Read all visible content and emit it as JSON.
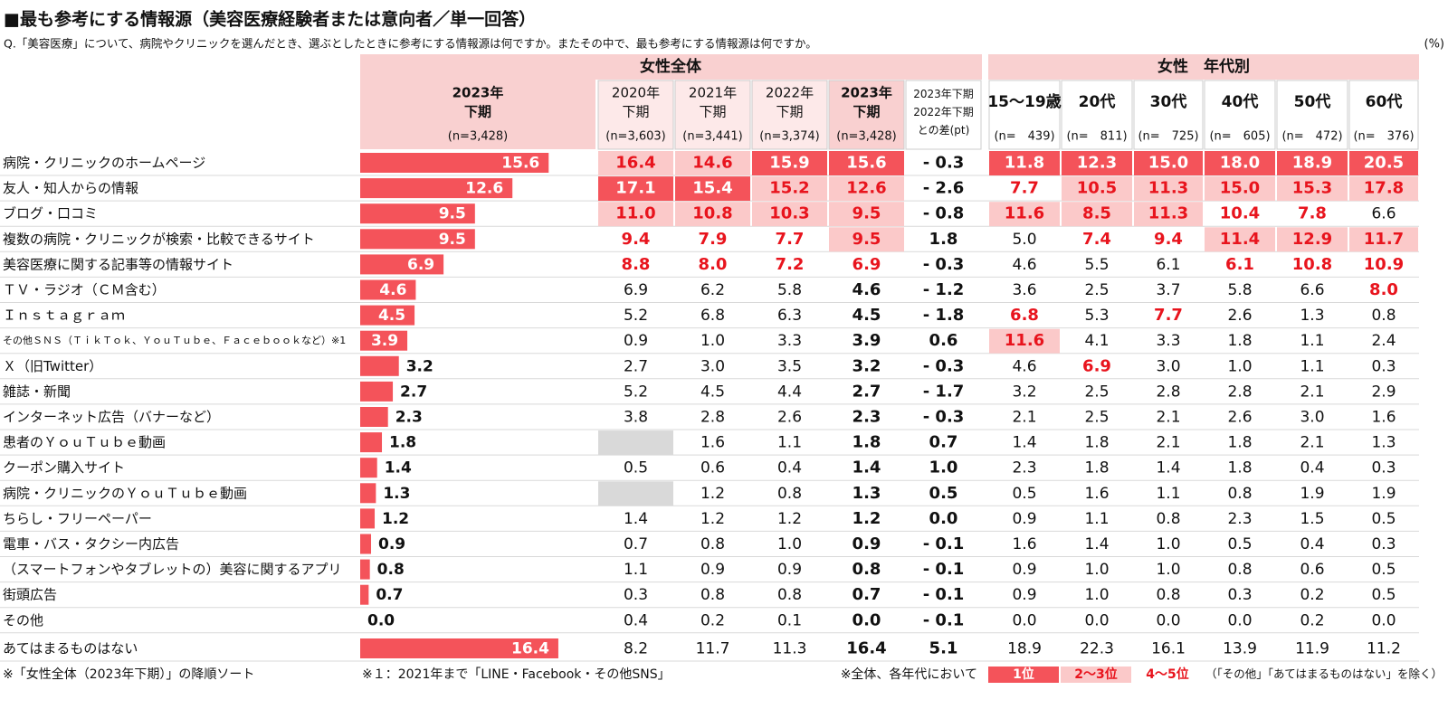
{
  "header": {
    "title": "■最も参考にする情報源（美容医療経験者または意向者／単一回答）",
    "question": "Q.「美容医療」について、病院やクリニックを選んだとき、選ぶとしたときに参考にする情報源は何ですか。またその中で、最も参考にする情報源は何ですか。",
    "unit": "(%)"
  },
  "table": {
    "group_headers": [
      "女性全体",
      "女性　年代別"
    ],
    "bar_header": {
      "label": "2023年\n下期",
      "n": "(n=3,428)"
    },
    "columns": [
      {
        "label": "2020年\n下期",
        "n": "(n=3,603)"
      },
      {
        "label": "2021年\n下期",
        "n": "(n=3,441)"
      },
      {
        "label": "2022年\n下期",
        "n": "(n=3,374)"
      },
      {
        "label": "2023年\n下期",
        "n": "(n=3,428)"
      },
      {
        "label": "2023年下期\n2022年下期\nとの差(pt)",
        "n": null
      },
      {
        "label": "15〜19歳",
        "n": "(n=　439)"
      },
      {
        "label": "20代",
        "n": "(n=　811)"
      },
      {
        "label": "30代",
        "n": "(n=　725)"
      },
      {
        "label": "40代",
        "n": "(n=　605)"
      },
      {
        "label": "50代",
        "n": "(n=　472)"
      },
      {
        "label": "60代",
        "n": "(n=　376)"
      }
    ],
    "bar_color": "#f4535a",
    "bar": {
      "values": [
        15.6,
        12.6,
        9.5,
        9.5,
        6.9,
        4.6,
        4.5,
        3.9,
        3.2,
        2.7,
        2.3,
        1.8,
        1.4,
        1.3,
        1.2,
        0.9,
        0.8,
        0.7,
        0.0,
        16.4
      ],
      "value_labels": [
        "15.6",
        "12.6",
        "9.5",
        "9.5",
        "6.9",
        "4.6",
        "4.5",
        "3.9",
        "3.2",
        "2.7",
        "2.3",
        "1.8",
        "1.4",
        "1.3",
        "1.2",
        "0.9",
        "0.8",
        "0.7",
        "0.0",
        "16.4"
      ]
    },
    "rows": [
      {
        "label": "病院・クリニックのホームページ",
        "cells": [
          "16.4",
          "14.6",
          "15.9",
          "15.6",
          "- 0.3",
          "11.8",
          "12.3",
          "15.0",
          "18.0",
          "18.9",
          "20.5"
        ],
        "highlight": [
          2,
          2,
          1,
          1,
          0,
          1,
          1,
          1,
          1,
          1,
          1
        ]
      },
      {
        "label": "友人・知人からの情報",
        "cells": [
          "17.1",
          "15.4",
          "15.2",
          "12.6",
          "- 2.6",
          "7.7",
          "10.5",
          "11.3",
          "15.0",
          "15.3",
          "17.8"
        ],
        "highlight": [
          1,
          1,
          2,
          2,
          0,
          3,
          2,
          2,
          2,
          2,
          2
        ]
      },
      {
        "label": "ブログ・口コミ",
        "cells": [
          "11.0",
          "10.8",
          "10.3",
          "9.5",
          "- 0.8",
          "11.6",
          "8.5",
          "11.3",
          "10.4",
          "7.8",
          "6.6"
        ],
        "highlight": [
          2,
          2,
          2,
          2,
          0,
          2,
          2,
          2,
          3,
          3,
          0
        ]
      },
      {
        "label": "複数の病院・クリニックが検索・比較できるサイト",
        "cells": [
          "9.4",
          "7.9",
          "7.7",
          "9.5",
          "1.8",
          "5.0",
          "7.4",
          "9.4",
          "11.4",
          "12.9",
          "11.7"
        ],
        "highlight": [
          3,
          3,
          3,
          2,
          0,
          0,
          3,
          3,
          2,
          2,
          2
        ]
      },
      {
        "label": "美容医療に関する記事等の情報サイト",
        "cells": [
          "8.8",
          "8.0",
          "7.2",
          "6.9",
          "- 0.3",
          "4.6",
          "5.5",
          "6.1",
          "6.1",
          "10.8",
          "10.9"
        ],
        "highlight": [
          3,
          3,
          3,
          3,
          0,
          0,
          0,
          0,
          3,
          3,
          3
        ]
      },
      {
        "label": "ＴＶ・ラジオ（ＣＭ含む）",
        "cells": [
          "6.9",
          "6.2",
          "5.8",
          "4.6",
          "- 1.2",
          "3.6",
          "2.5",
          "3.7",
          "5.8",
          "6.6",
          "8.0"
        ],
        "highlight": [
          0,
          0,
          0,
          0,
          0,
          0,
          0,
          0,
          0,
          0,
          3
        ]
      },
      {
        "label": "Ｉｎｓｔａｇｒａｍ",
        "cells": [
          "5.2",
          "6.8",
          "6.3",
          "4.5",
          "- 1.8",
          "6.8",
          "5.3",
          "7.7",
          "2.6",
          "1.3",
          "0.8"
        ],
        "highlight": [
          0,
          0,
          0,
          0,
          0,
          3,
          0,
          3,
          0,
          0,
          0
        ]
      },
      {
        "label": "その他ＳＮＳ（ＴｉｋＴｏｋ、ＹｏｕＴｕｂｅ、Ｆａｃｅｂｏｏｋなど）※1",
        "cells": [
          "0.9",
          "1.0",
          "3.3",
          "3.9",
          "0.6",
          "11.6",
          "4.1",
          "3.3",
          "1.8",
          "1.1",
          "2.4"
        ],
        "highlight": [
          0,
          0,
          0,
          0,
          0,
          2,
          0,
          0,
          0,
          0,
          0
        ]
      },
      {
        "label": "Ｘ（旧Twitter）",
        "cells": [
          "2.7",
          "3.0",
          "3.5",
          "3.2",
          "- 0.3",
          "4.6",
          "6.9",
          "3.0",
          "1.0",
          "1.1",
          "0.3"
        ],
        "highlight": [
          0,
          0,
          0,
          0,
          0,
          0,
          3,
          0,
          0,
          0,
          0
        ]
      },
      {
        "label": "雑誌・新聞",
        "cells": [
          "5.2",
          "4.5",
          "4.4",
          "2.7",
          "- 1.7",
          "3.2",
          "2.5",
          "2.8",
          "2.8",
          "2.1",
          "2.9"
        ],
        "highlight": [
          0,
          0,
          0,
          0,
          0,
          0,
          0,
          0,
          0,
          0,
          0
        ]
      },
      {
        "label": "インターネット広告（バナーなど）",
        "cells": [
          "3.8",
          "2.8",
          "2.6",
          "2.3",
          "- 0.3",
          "2.1",
          "2.5",
          "2.1",
          "2.6",
          "3.0",
          "1.6"
        ],
        "highlight": [
          0,
          0,
          0,
          0,
          0,
          0,
          0,
          0,
          0,
          0,
          0
        ]
      },
      {
        "label": "患者のＹｏｕＴｕｂｅ動画",
        "cells": [
          null,
          "1.6",
          "1.1",
          "1.8",
          "0.7",
          "1.4",
          "1.8",
          "2.1",
          "1.8",
          "2.1",
          "1.3"
        ],
        "highlight": [
          0,
          0,
          0,
          0,
          0,
          0,
          0,
          0,
          0,
          0,
          0
        ]
      },
      {
        "label": "クーポン購入サイト",
        "cells": [
          "0.5",
          "0.6",
          "0.4",
          "1.4",
          "1.0",
          "2.3",
          "1.8",
          "1.4",
          "1.8",
          "0.4",
          "0.3"
        ],
        "highlight": [
          0,
          0,
          0,
          0,
          0,
          0,
          0,
          0,
          0,
          0,
          0
        ]
      },
      {
        "label": "病院・クリニックのＹｏｕＴｕｂｅ動画",
        "cells": [
          null,
          "1.2",
          "0.8",
          "1.3",
          "0.5",
          "0.5",
          "1.6",
          "1.1",
          "0.8",
          "1.9",
          "1.9"
        ],
        "highlight": [
          0,
          0,
          0,
          0,
          0,
          0,
          0,
          0,
          0,
          0,
          0
        ]
      },
      {
        "label": "ちらし・フリーペーパー",
        "cells": [
          "1.4",
          "1.2",
          "1.2",
          "1.2",
          "0.0",
          "0.9",
          "1.1",
          "0.8",
          "2.3",
          "1.5",
          "0.5"
        ],
        "highlight": [
          0,
          0,
          0,
          0,
          0,
          0,
          0,
          0,
          0,
          0,
          0
        ]
      },
      {
        "label": "電車・バス・タクシー内広告",
        "cells": [
          "0.7",
          "0.8",
          "1.0",
          "0.9",
          "- 0.1",
          "1.6",
          "1.4",
          "1.0",
          "0.5",
          "0.4",
          "0.3"
        ],
        "highlight": [
          0,
          0,
          0,
          0,
          0,
          0,
          0,
          0,
          0,
          0,
          0
        ]
      },
      {
        "label": "（スマートフォンやタブレットの）美容に関するアプリ",
        "cells": [
          "1.1",
          "0.9",
          "0.9",
          "0.8",
          "- 0.1",
          "0.9",
          "1.0",
          "1.0",
          "0.8",
          "0.6",
          "0.5"
        ],
        "highlight": [
          0,
          0,
          0,
          0,
          0,
          0,
          0,
          0,
          0,
          0,
          0
        ]
      },
      {
        "label": "街頭広告",
        "cells": [
          "0.3",
          "0.8",
          "0.8",
          "0.7",
          "- 0.1",
          "0.9",
          "1.0",
          "0.8",
          "0.3",
          "0.2",
          "0.5"
        ],
        "highlight": [
          0,
          0,
          0,
          0,
          0,
          0,
          0,
          0,
          0,
          0,
          0
        ]
      },
      {
        "label": "その他",
        "cells": [
          "0.4",
          "0.2",
          "0.1",
          "0.0",
          "- 0.1",
          "0.0",
          "0.0",
          "0.0",
          "0.0",
          "0.2",
          "0.0"
        ],
        "highlight": [
          0,
          0,
          0,
          0,
          0,
          0,
          0,
          0,
          0,
          0,
          0
        ]
      },
      {
        "label": "あてはまるものはない",
        "cells": [
          "8.2",
          "11.7",
          "11.3",
          "16.4",
          "5.1",
          "18.9",
          "22.3",
          "16.1",
          "13.9",
          "11.9",
          "11.2"
        ],
        "highlight": [
          0,
          0,
          0,
          0,
          0,
          0,
          0,
          0,
          0,
          0,
          0
        ]
      }
    ]
  },
  "footer": {
    "note1": "※「女性全体（2023年下期）」の降順ソート",
    "note2": "※１：2021年まで「LINE・Facebook・その他SNS」",
    "legend_intro": "※全体、各年代において",
    "legend": [
      "1位",
      "2〜3位",
      "4〜5位"
    ],
    "legend_note": "（「その他」「あてはまるものはない」を除く）"
  }
}
